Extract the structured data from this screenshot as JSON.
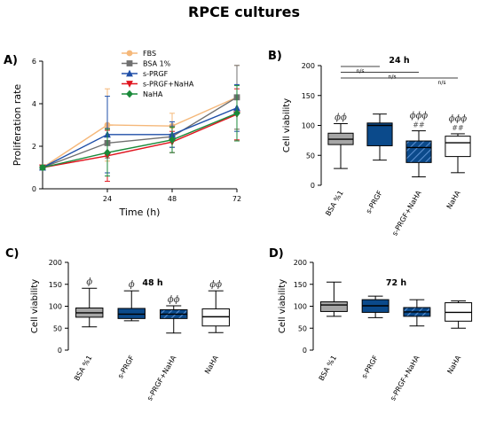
{
  "figure": {
    "title": "RPCE cultures",
    "colors": {
      "gray": "#a6a6a6",
      "blue": "#0b4a8b",
      "white": "#ffffff"
    }
  },
  "chart_data": [
    {
      "panel": "A)",
      "type": "line",
      "xlabel": "Time (h)",
      "ylabel": "Proliferation rate",
      "x": [
        0,
        24,
        48,
        72
      ],
      "xticks": [
        24,
        48,
        72
      ],
      "xlim": [
        0,
        72
      ],
      "ylim": [
        0,
        6
      ],
      "yticks": [
        0,
        2,
        4,
        6
      ],
      "legend_position": "top-center",
      "series": [
        {
          "name": "FBS",
          "color": "#f5b87a",
          "marker": "circle",
          "values": [
            1.0,
            3.0,
            2.95,
            4.3
          ],
          "err": [
            0.1,
            1.7,
            0.6,
            1.5
          ]
        },
        {
          "name": "BSA 1%",
          "color": "#707070",
          "marker": "square",
          "values": [
            1.0,
            2.15,
            2.45,
            4.3
          ],
          "err": [
            0.1,
            0.7,
            0.5,
            1.5
          ]
        },
        {
          "name": "s-PRGF",
          "color": "#1f4fa8",
          "marker": "triangle-up",
          "values": [
            1.0,
            2.55,
            2.55,
            3.8
          ],
          "err": [
            0.1,
            1.8,
            0.6,
            1.1
          ]
        },
        {
          "name": "s-PRGF+NaHA",
          "color": "#e0141e",
          "marker": "triangle-down",
          "values": [
            1.0,
            1.55,
            2.2,
            3.5
          ],
          "err": [
            0.1,
            1.2,
            0.5,
            1.2
          ]
        },
        {
          "name": "NaHA",
          "color": "#1a8a3a",
          "marker": "diamond",
          "values": [
            1.0,
            1.7,
            2.3,
            3.55
          ],
          "err": [
            0.1,
            1.1,
            0.6,
            1.3
          ]
        }
      ]
    },
    {
      "panel": "B)",
      "type": "box",
      "title": "24 h",
      "ylabel": "Cell viability",
      "ylim": [
        0,
        200
      ],
      "yticks": [
        0,
        50,
        100,
        150,
        200
      ],
      "categories": [
        "BSA %1",
        "s-PRGF",
        "s-PRGF+NaHA",
        "NaHA"
      ],
      "boxes": [
        {
          "min": 28,
          "q1": 68,
          "median": 77,
          "q3": 87,
          "max": 103,
          "fill": "gray",
          "annotation": "ϕϕ"
        },
        {
          "min": 42,
          "q1": 66,
          "median": 100,
          "q3": 104,
          "max": 119,
          "fill": "blue",
          "annotation": ""
        },
        {
          "min": 14,
          "q1": 38,
          "median": 63,
          "q3": 74,
          "max": 91,
          "fill": "blue-hatched",
          "annotation": "ϕϕϕ ##"
        },
        {
          "min": 21,
          "q1": 48,
          "median": 71,
          "q3": 82,
          "max": 86,
          "fill": "white",
          "annotation": "ϕϕϕ ##"
        }
      ],
      "comparisons": [
        {
          "from": 0,
          "to": 1,
          "label": "n/s"
        },
        {
          "from": 0,
          "to": 2,
          "label": "n/s"
        },
        {
          "from": 0,
          "to": 3,
          "label": "n/s"
        }
      ]
    },
    {
      "panel": "C)",
      "type": "box",
      "title": "48 h",
      "ylabel": "Cell viability",
      "ylim": [
        0,
        200
      ],
      "yticks": [
        0,
        50,
        100,
        150,
        200
      ],
      "categories": [
        "BSA %1",
        "s-PRGF",
        "s-PRGF+NaHA",
        "NaHA"
      ],
      "boxes": [
        {
          "min": 53,
          "q1": 75,
          "median": 85,
          "q3": 96,
          "max": 141,
          "fill": "gray",
          "annotation": "ϕ"
        },
        {
          "min": 67,
          "q1": 72,
          "median": 82,
          "q3": 95,
          "max": 135,
          "fill": "blue",
          "annotation": "ϕ"
        },
        {
          "min": 39,
          "q1": 72,
          "median": 82,
          "q3": 92,
          "max": 101,
          "fill": "blue-hatched",
          "annotation": "ϕϕ"
        },
        {
          "min": 40,
          "q1": 55,
          "median": 76,
          "q3": 94,
          "max": 135,
          "fill": "white",
          "annotation": "ϕϕ"
        }
      ]
    },
    {
      "panel": "D)",
      "type": "box",
      "title": "72 h",
      "ylabel": "Cell viability",
      "ylim": [
        0,
        200
      ],
      "yticks": [
        0,
        50,
        100,
        150,
        200
      ],
      "categories": [
        "BSA %1",
        "s-PRGF",
        "s-PRGF+NaHA",
        "NaHA"
      ],
      "boxes": [
        {
          "min": 77,
          "q1": 88,
          "median": 103,
          "q3": 110,
          "max": 155,
          "fill": "gray",
          "annotation": ""
        },
        {
          "min": 74,
          "q1": 86,
          "median": 101,
          "q3": 115,
          "max": 123,
          "fill": "blue",
          "annotation": ""
        },
        {
          "min": 55,
          "q1": 77,
          "median": 87,
          "q3": 97,
          "max": 115,
          "fill": "blue-hatched",
          "annotation": ""
        },
        {
          "min": 50,
          "q1": 66,
          "median": 86,
          "q3": 108,
          "max": 112,
          "fill": "white",
          "annotation": ""
        }
      ]
    }
  ]
}
